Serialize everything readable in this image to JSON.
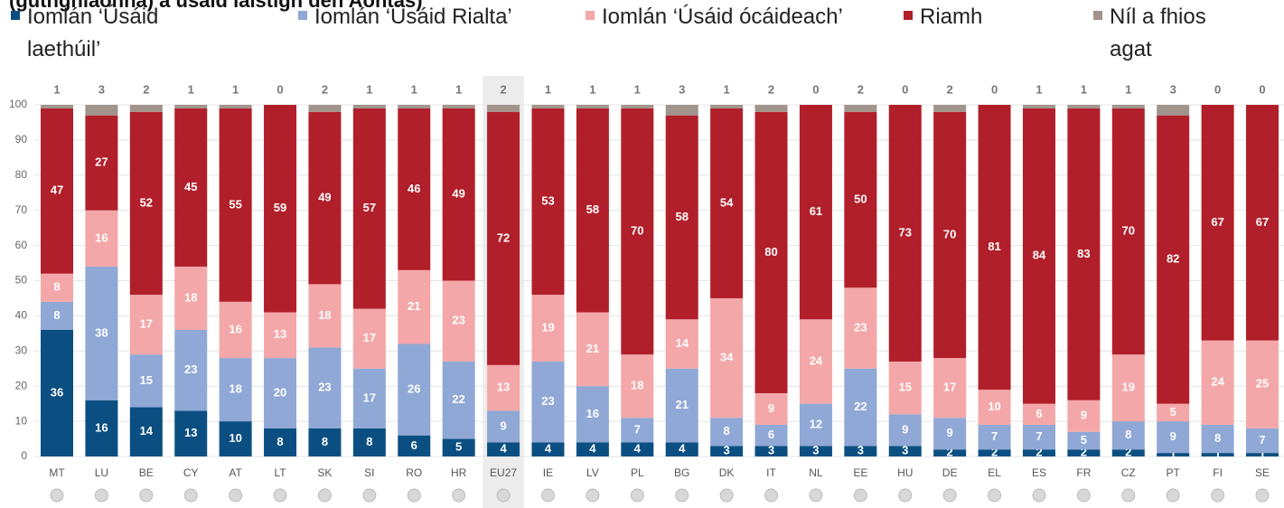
{
  "chart_data": {
    "type": "stacked_bar",
    "title": "(guthghlaonna) a úsáid laistigh den Aontas)",
    "categories": [
      "MT",
      "LU",
      "BE",
      "CY",
      "AT",
      "LT",
      "SK",
      "SI",
      "RO",
      "HR",
      "EU27",
      "IE",
      "LV",
      "PL",
      "BG",
      "DK",
      "IT",
      "NL",
      "EE",
      "HU",
      "DE",
      "EL",
      "ES",
      "FR",
      "CZ",
      "PT",
      "FI",
      "SE"
    ],
    "highlight": "EU27",
    "series": [
      {
        "name": "Iomlán ‘Úsáid laethúil’",
        "color": "#0b4f82",
        "values": [
          36,
          16,
          14,
          13,
          10,
          8,
          8,
          8,
          6,
          5,
          4,
          4,
          4,
          4,
          4,
          3,
          3,
          3,
          3,
          3,
          2,
          2,
          2,
          2,
          2,
          1,
          1,
          1
        ]
      },
      {
        "name": "Iomlán ‘Úsáid Rialta’",
        "color": "#8fa8d6",
        "values": [
          8,
          38,
          15,
          23,
          18,
          20,
          23,
          17,
          26,
          22,
          9,
          23,
          16,
          7,
          21,
          8,
          6,
          12,
          22,
          9,
          9,
          7,
          7,
          5,
          8,
          9,
          8,
          7
        ]
      },
      {
        "name": "Iomlán ‘Úsáid ócáideach’",
        "color": "#f4a7a8",
        "values": [
          8,
          16,
          17,
          18,
          16,
          13,
          18,
          17,
          21,
          23,
          13,
          19,
          21,
          18,
          14,
          34,
          9,
          24,
          23,
          15,
          17,
          10,
          6,
          9,
          19,
          5,
          24,
          25
        ]
      },
      {
        "name": "Riamh",
        "color": "#b11f2a",
        "values": [
          47,
          27,
          52,
          45,
          55,
          59,
          49,
          57,
          46,
          49,
          72,
          53,
          58,
          70,
          58,
          54,
          80,
          61,
          50,
          73,
          70,
          81,
          84,
          83,
          70,
          82,
          67,
          67
        ]
      },
      {
        "name": "Níl a fhios agat",
        "color": "#a0948c",
        "values": [
          1,
          3,
          2,
          1,
          1,
          0,
          2,
          1,
          1,
          1,
          2,
          1,
          1,
          1,
          3,
          1,
          2,
          0,
          2,
          0,
          2,
          0,
          1,
          1,
          1,
          3,
          0,
          0
        ]
      }
    ],
    "ylim": [
      0,
      100
    ],
    "yticks": [
      0,
      10,
      20,
      30,
      40,
      50,
      60,
      70,
      80,
      90,
      100
    ],
    "grid": true
  }
}
